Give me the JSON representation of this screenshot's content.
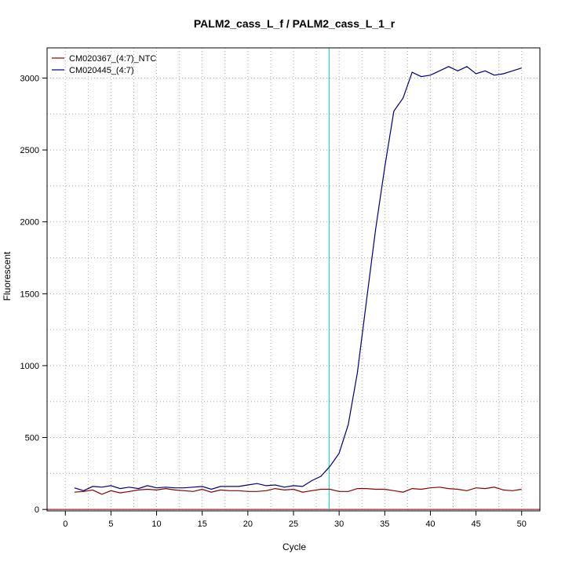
{
  "chart_data": {
    "type": "line",
    "title": "PALM2_cass_L_f / PALM2_cass_L_1_r",
    "xlabel": "Cycle",
    "ylabel": "Fluorescent",
    "xlim": [
      -2,
      52
    ],
    "ylim": [
      -10,
      3210
    ],
    "x_ticks": [
      0,
      5,
      10,
      15,
      20,
      25,
      30,
      35,
      40,
      45,
      50
    ],
    "y_ticks": [
      0,
      500,
      1000,
      1500,
      2000,
      2500,
      3000
    ],
    "grid": true,
    "legend_position": "top-left",
    "threshold_line": {
      "cycle": 28.9,
      "color": "#00ced1"
    },
    "baseline": {
      "value": 0,
      "color": "#8b0000"
    },
    "x": [
      1,
      2,
      3,
      4,
      5,
      6,
      7,
      8,
      9,
      10,
      11,
      12,
      13,
      14,
      15,
      16,
      17,
      18,
      19,
      20,
      21,
      22,
      23,
      24,
      25,
      26,
      27,
      28,
      29,
      30,
      31,
      32,
      33,
      34,
      35,
      36,
      37,
      38,
      39,
      40,
      41,
      42,
      43,
      44,
      45,
      46,
      47,
      48,
      49,
      50
    ],
    "series": [
      {
        "name": "CM020367_(4:7)_NTC",
        "color": "#8b0000",
        "values": [
          120,
          125,
          135,
          105,
          130,
          115,
          125,
          135,
          140,
          135,
          145,
          135,
          130,
          125,
          140,
          120,
          135,
          130,
          130,
          125,
          125,
          130,
          145,
          135,
          140,
          120,
          130,
          140,
          140,
          125,
          125,
          145,
          145,
          140,
          140,
          130,
          120,
          145,
          140,
          150,
          155,
          145,
          140,
          130,
          150,
          145,
          155,
          135,
          130,
          140
        ]
      },
      {
        "name": "CM020445_(4:7)",
        "color": "#000080",
        "values": [
          150,
          130,
          160,
          155,
          165,
          145,
          155,
          145,
          165,
          150,
          155,
          150,
          150,
          155,
          160,
          140,
          160,
          160,
          160,
          170,
          180,
          165,
          170,
          155,
          165,
          160,
          200,
          230,
          300,
          390,
          590,
          950,
          1450,
          1950,
          2380,
          2770,
          2860,
          3040,
          3010,
          3020,
          3050,
          3080,
          3050,
          3080,
          3030,
          3050,
          3020,
          3030,
          3050,
          3070
        ]
      }
    ]
  }
}
